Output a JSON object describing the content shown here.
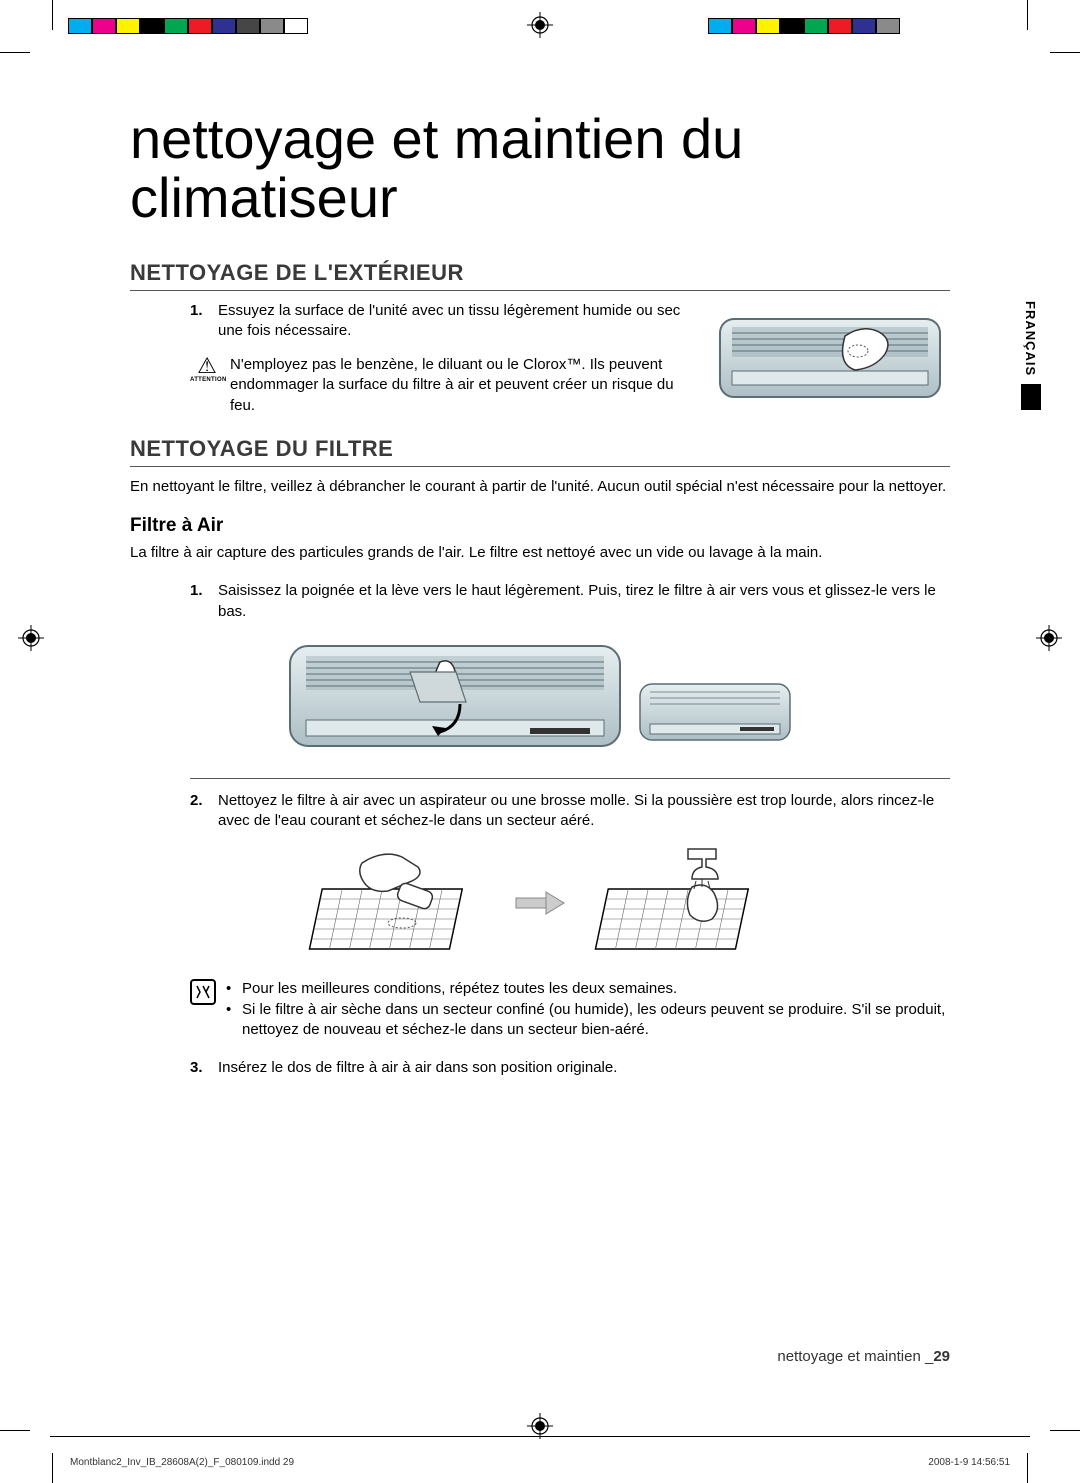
{
  "colors": {
    "text": "#000000",
    "heading": "#3a3a3a",
    "rule": "#555555",
    "bg": "#ffffff",
    "ac_body": "#c9d8dd",
    "ac_shadow": "#8aa1a8",
    "filter_grid": "#5a5a5a"
  },
  "print_bar_left": [
    "#00aeef",
    "#ec008c",
    "#fff200",
    "#000000",
    "#00a651",
    "#ed1c24",
    "#2e3192",
    "#464646",
    "#8a8a8a",
    "#ffffff"
  ],
  "print_bar_right": [
    "#00aeef",
    "#ec008c",
    "#fff200",
    "#000000",
    "#00a651",
    "#ed1c24",
    "#2e3192",
    "#8a8a8a"
  ],
  "title": "nettoyage et maintien du climatiseur",
  "h2_exterior": "NETTOYAGE DE L'EXTÉRIEUR",
  "step_ext_1_num": "1.",
  "step_ext_1": "Essuyez la surface de l'unité avec un tissu légèrement humide ou sec une fois nécessaire.",
  "caution_label": "ATTENTION",
  "caution_text": "N'employez pas le benzène, le diluant ou le Clorox™. Ils peuvent endommager la surface du filtre à air et peuvent créer un risque du feu.",
  "h2_filter": "NETTOYAGE DU FILTRE",
  "filter_intro": "En nettoyant le filtre, veillez à débrancher le courant à partir de l'unité. Aucun outil spécial n'est nécessaire pour la nettoyer.",
  "h3_air": "Filtre à Air",
  "air_intro": "La filtre à air capture des particules grands de l'air. Le filtre est nettoyé avec un vide ou lavage à la main.",
  "step_air_1_num": "1.",
  "step_air_1": "Saisissez la poignée et la lève vers le haut légèrement. Puis, tirez le filtre à air vers vous et glissez-le vers le bas.",
  "step_air_2_num": "2.",
  "step_air_2": "Nettoyez le filtre à air avec un aspirateur ou une brosse molle. Si la poussière est trop lourde, alors rincez-le avec de l'eau courant et séchez-le dans un secteur aéré.",
  "note_1": "Pour les meilleures conditions, répétez toutes les deux semaines.",
  "note_2": "Si le filtre à air sèche dans un secteur confiné (ou humide), les odeurs peuvent se produire. S'il se produit, nettoyez de nouveau et séchez-le dans un secteur bien-aéré.",
  "step_air_3_num": "3.",
  "step_air_3": "Insérez le dos de filtre à air à air dans son position originale.",
  "side_lang": "FRANÇAIS",
  "footer_label": "nettoyage et maintien _",
  "footer_page": "29",
  "indd_file": "Montblanc2_Inv_IB_28608A(2)_F_080109.indd   29",
  "indd_date": "2008-1-9   14:56:51"
}
